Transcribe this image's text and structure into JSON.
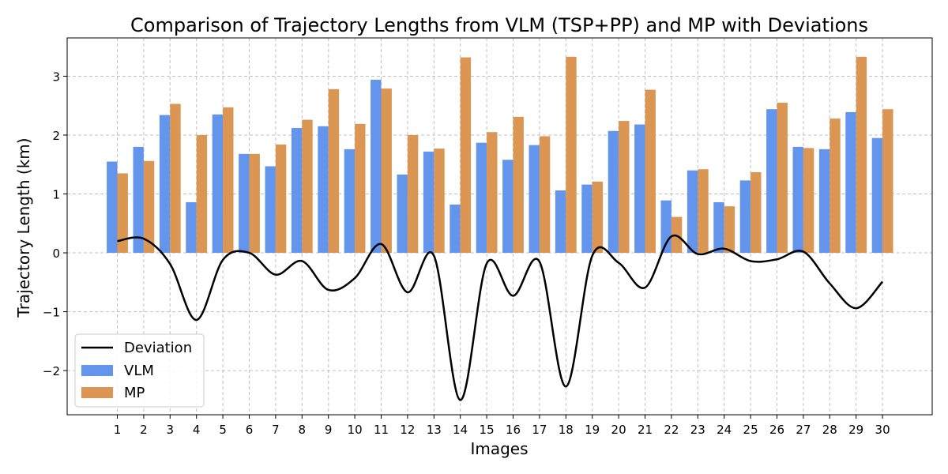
{
  "chart_data": {
    "type": "bar",
    "title": "Comparison of Trajectory Lengths from VLM (TSP+PP) and MP with Deviations",
    "xlabel": "Images",
    "ylabel": "Trajectory Length (km)",
    "categories": [
      "1",
      "2",
      "3",
      "4",
      "5",
      "6",
      "7",
      "8",
      "9",
      "10",
      "11",
      "12",
      "13",
      "14",
      "15",
      "16",
      "17",
      "18",
      "19",
      "20",
      "21",
      "22",
      "23",
      "24",
      "25",
      "26",
      "27",
      "28",
      "29",
      "30"
    ],
    "ylim": [
      -2.75,
      3.65
    ],
    "yticks": [
      -2,
      -1,
      0,
      1,
      2,
      3
    ],
    "ytick_labels": [
      "−2",
      "−1",
      "0",
      "1",
      "2",
      "3"
    ],
    "grid": true,
    "legend_position": "lower-left",
    "series": [
      {
        "name": "VLM",
        "kind": "bar",
        "color": "#6495ED",
        "values": [
          1.55,
          1.8,
          2.34,
          0.86,
          2.35,
          1.68,
          1.47,
          2.12,
          2.15,
          1.76,
          2.94,
          1.33,
          1.72,
          0.82,
          1.87,
          1.58,
          1.83,
          1.06,
          1.16,
          2.07,
          2.18,
          0.89,
          1.4,
          0.86,
          1.23,
          2.44,
          1.8,
          1.76,
          2.39,
          1.95
        ]
      },
      {
        "name": "MP",
        "kind": "bar",
        "color": "#DA9652",
        "values": [
          1.35,
          1.56,
          2.53,
          2.0,
          2.47,
          1.68,
          1.84,
          2.26,
          2.78,
          2.19,
          2.79,
          2.0,
          1.77,
          3.32,
          2.05,
          2.31,
          1.98,
          3.33,
          1.21,
          2.24,
          2.77,
          0.61,
          1.42,
          0.79,
          1.37,
          2.55,
          1.78,
          2.28,
          3.33,
          2.44
        ]
      },
      {
        "name": "Deviation",
        "kind": "line",
        "color": "#000000",
        "values": [
          0.2,
          0.24,
          -0.19,
          -1.14,
          -0.12,
          0.0,
          -0.37,
          -0.14,
          -0.63,
          -0.43,
          0.15,
          -0.67,
          -0.05,
          -2.5,
          -0.18,
          -0.73,
          -0.15,
          -2.27,
          -0.05,
          -0.17,
          -0.59,
          0.28,
          -0.02,
          0.07,
          -0.14,
          -0.11,
          0.02,
          -0.52,
          -0.94,
          -0.49
        ]
      }
    ]
  }
}
